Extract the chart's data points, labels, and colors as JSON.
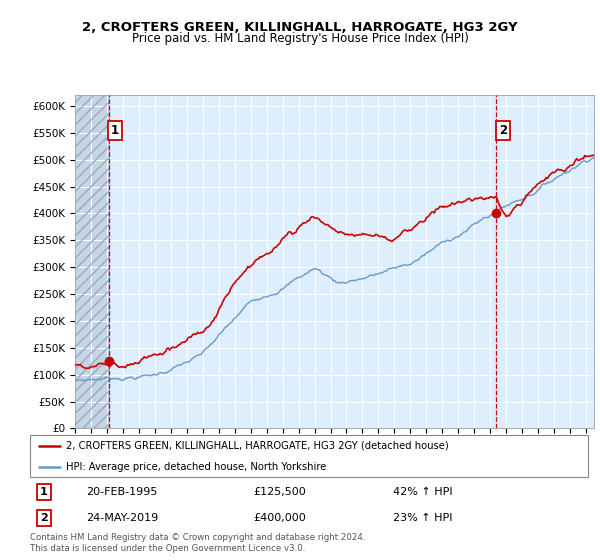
{
  "title": "2, CROFTERS GREEN, KILLINGHALL, HARROGATE, HG3 2GY",
  "subtitle": "Price paid vs. HM Land Registry's House Price Index (HPI)",
  "hpi_color": "#6699cc",
  "price_color": "#cc0000",
  "bg_color": "#ddeeff",
  "legend_line1": "2, CROFTERS GREEN, KILLINGHALL, HARROGATE, HG3 2GY (detached house)",
  "legend_line2": "HPI: Average price, detached house, North Yorkshire",
  "transaction1_date": "20-FEB-1995",
  "transaction1_price": 125500,
  "transaction1_label": "£125,500",
  "transaction1_hpi": "42% ↑ HPI",
  "transaction2_date": "24-MAY-2019",
  "transaction2_price": 400000,
  "transaction2_label": "£400,000",
  "transaction2_hpi": "23% ↑ HPI",
  "footer": "Contains HM Land Registry data © Crown copyright and database right 2024.\nThis data is licensed under the Open Government Licence v3.0.",
  "ylim": [
    0,
    620000
  ],
  "yticks": [
    0,
    50000,
    100000,
    150000,
    200000,
    250000,
    300000,
    350000,
    400000,
    450000,
    500000,
    550000,
    600000
  ],
  "ytick_labels": [
    "£0",
    "£50K",
    "£100K",
    "£150K",
    "£200K",
    "£250K",
    "£300K",
    "£350K",
    "£400K",
    "£450K",
    "£500K",
    "£550K",
    "£600K"
  ],
  "xmin": 1993.0,
  "xmax": 2025.5,
  "t1_year": 1995.12,
  "t2_year": 2019.39
}
